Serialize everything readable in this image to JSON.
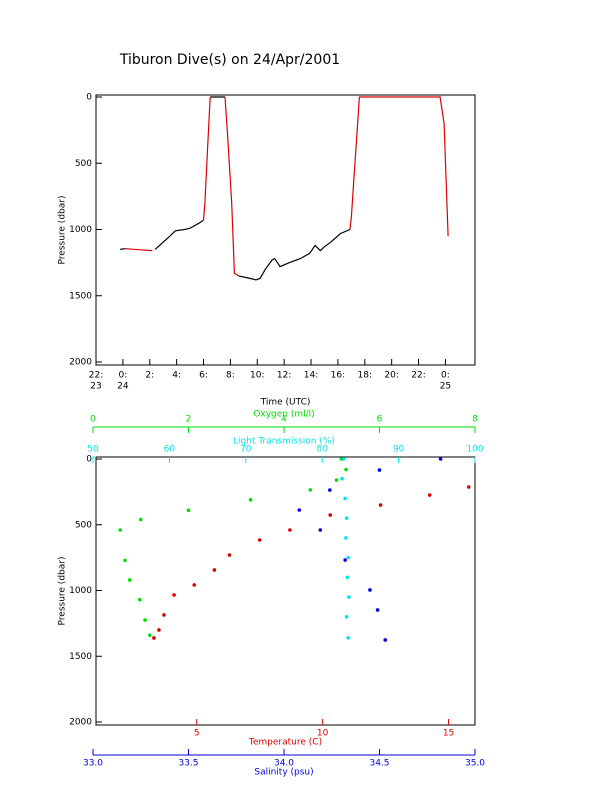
{
  "chart_data": [
    {
      "type": "line",
      "title": "Tiburon Dive(s) on 24/Apr/2001",
      "xlabel": "Time (UTC)",
      "ylabel": "Pressure (dbar)",
      "xlim": [
        -2,
        26.2
      ],
      "ylim": [
        0,
        2000
      ],
      "y_reversed": true,
      "xticks": [
        {
          "value": -2,
          "label": "22:",
          "date": "23"
        },
        {
          "value": 0,
          "label": "0:",
          "date": "24"
        },
        {
          "value": 2,
          "label": "2:"
        },
        {
          "value": 4,
          "label": "4:"
        },
        {
          "value": 6,
          "label": "6:"
        },
        {
          "value": 8,
          "label": "8:"
        },
        {
          "value": 10,
          "label": "10:"
        },
        {
          "value": 12,
          "label": "12:"
        },
        {
          "value": 14,
          "label": "14:"
        },
        {
          "value": 16,
          "label": "16:"
        },
        {
          "value": 18,
          "label": "18:"
        },
        {
          "value": 20,
          "label": "20:"
        },
        {
          "value": 22,
          "label": "22:"
        },
        {
          "value": 24,
          "label": "0:",
          "date": "25"
        }
      ],
      "yticks": [
        0,
        500,
        1000,
        1500,
        2000
      ],
      "series": [
        {
          "color": "#000000",
          "x": [
            -0.2,
            0.2,
            null,
            2.4,
            3.5,
            3.9,
            4.6,
            5.0,
            5.7,
            6.0,
            null,
            6.5,
            7.6,
            null,
            8.6,
            9.5,
            9.9,
            10.2,
            10.6,
            11.1,
            11.3,
            11.7,
            12.4,
            13.2,
            13.9,
            14.3,
            14.7,
            15.0,
            15.4,
            16.2,
            16.9
          ],
          "values": [
            1150,
            1145,
            null,
            1150,
            1050,
            1010,
            1000,
            990,
            950,
            930,
            null,
            0,
            0,
            null,
            1350,
            1370,
            1380,
            1370,
            1300,
            1230,
            1220,
            1280,
            1250,
            1220,
            1180,
            1120,
            1160,
            1130,
            1100,
            1030,
            1000
          ]
        },
        {
          "color": "#dd0000",
          "x": [
            0.2,
            2.2,
            null,
            6.0,
            6.1,
            6.3,
            6.5,
            null,
            7.6,
            7.8,
            8.1,
            8.3,
            8.6,
            null,
            16.9,
            17.0,
            17.6,
            23.6,
            23.9,
            24.2
          ],
          "values": [
            1145,
            1160,
            null,
            930,
            800,
            400,
            0,
            null,
            0,
            300,
            800,
            1330,
            1350,
            null,
            1000,
            900,
            0,
            0,
            200,
            1050
          ]
        }
      ]
    },
    {
      "type": "scatter",
      "ylabel": "Pressure (dbar)",
      "ylim": [
        0,
        2000
      ],
      "y_reversed": true,
      "yticks": [
        0,
        500,
        1000,
        1500,
        2000
      ],
      "axes": [
        {
          "label": "Oxygen (ml/l)",
          "color": "#00dd00",
          "position": "top",
          "lim": [
            0,
            8
          ],
          "ticks": [
            0,
            2,
            4,
            6,
            8
          ],
          "pressure": [
            0,
            80,
            160,
            235,
            310,
            390,
            460,
            540,
            770,
            920,
            1070,
            1225,
            1340
          ],
          "values": [
            5.2,
            5.3,
            5.1,
            4.55,
            3.3,
            2.0,
            1.0,
            0.57,
            0.67,
            0.77,
            0.98,
            1.09,
            1.19
          ]
        },
        {
          "label": "Light Transmission (%)",
          "color": "#00e5ee",
          "position": "top2",
          "lim": [
            50,
            100
          ],
          "ticks": [
            50,
            60,
            70,
            80,
            90,
            100
          ],
          "pressure": [
            0,
            150,
            300,
            450,
            600,
            750,
            900,
            1050,
            1200,
            1360
          ],
          "values": [
            82.8,
            82.6,
            83.0,
            83.2,
            83.1,
            83.4,
            83.3,
            83.5,
            83.2,
            83.4
          ]
        },
        {
          "label": "Temperature (C)",
          "color": "#dd0000",
          "position": "bottom",
          "lim": [
            1,
            16.05
          ],
          "ticks": [
            5,
            10,
            15
          ],
          "pressure": [
            213,
            274,
            350,
            426,
            540,
            616,
            730,
            844,
            958,
            1034,
            1186,
            1300,
            1361
          ],
          "values": [
            15.8,
            14.25,
            12.3,
            10.3,
            8.7,
            7.5,
            6.3,
            5.7,
            4.9,
            4.1,
            3.7,
            3.5,
            3.3
          ]
        },
        {
          "label": "Salinity (psu)",
          "color": "#0000dd",
          "position": "bottom2",
          "lim": [
            33,
            35
          ],
          "ticks": [
            {
              "value": 33,
              "label": "33.0"
            },
            33.5,
            {
              "value": 34,
              "label": "34.0"
            },
            34.5,
            {
              "value": 35,
              "label": "35.0"
            }
          ],
          "pressure": [
            0,
            84,
            236,
            388,
            540,
            768,
            996,
            1148,
            1376
          ],
          "values": [
            34.82,
            34.5,
            34.24,
            34.08,
            34.19,
            34.32,
            34.45,
            34.49,
            34.53
          ]
        }
      ]
    }
  ]
}
